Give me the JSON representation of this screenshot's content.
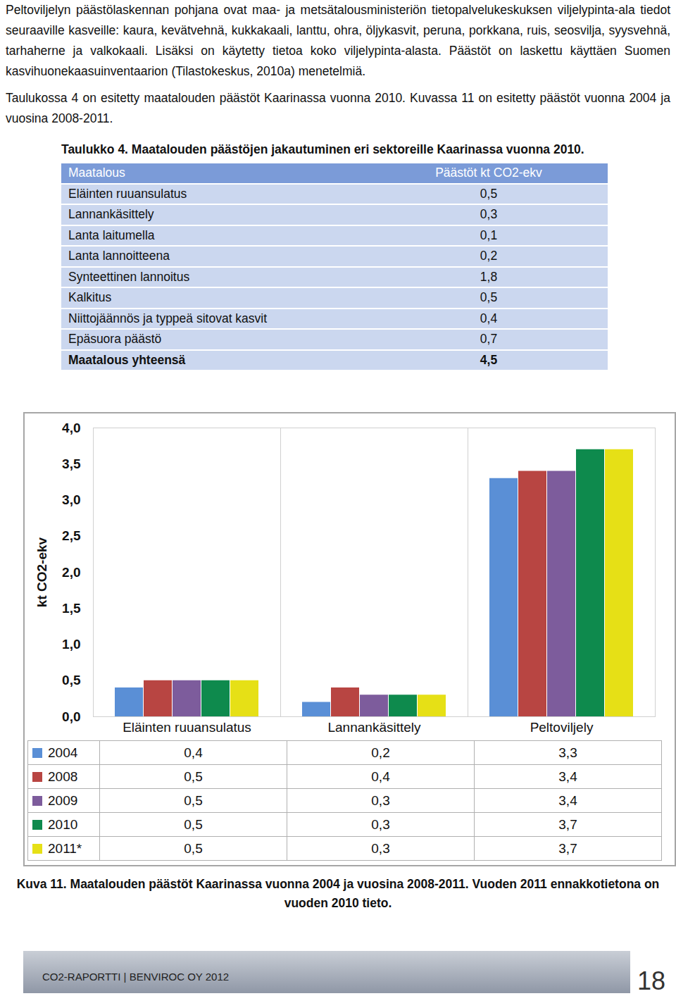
{
  "paragraphs": [
    "Peltoviljelyn päästölaskennan pohjana ovat maa- ja metsätalousministeriön tietopalvelukeskuksen viljelypinta-ala tiedot seuraaville kasveille: kaura, kevätvehnä, kukkakaali, lanttu, ohra, öljykasvit, peruna, porkkana, ruis, seosvilja, syysvehnä, tarhaherne ja valkokaali. Lisäksi on käytetty tietoa koko viljelypinta-alasta. Päästöt on laskettu käyttäen Suomen kasvihuonekaasuinventaarion (Tilastokeskus, 2010a) menetelmiä.",
    "Taulukossa 4 on esitetty maatalouden päästöt Kaarinassa vuonna 2010. Kuvassa 11 on esitetty päästöt vuonna 2004 ja vuosina 2008-2011."
  ],
  "table": {
    "title": "Taulukko 4. Maatalouden päästöjen jakautuminen eri sektoreille Kaarinassa vuonna 2010.",
    "header": [
      "Maatalous",
      "Päästöt kt CO2-ekv"
    ],
    "rows": [
      [
        "Eläinten ruuansulatus",
        "0,5"
      ],
      [
        "Lannankäsittely",
        "0,3"
      ],
      [
        "Lanta laitumella",
        "0,1"
      ],
      [
        "Lanta lannoitteena",
        "0,2"
      ],
      [
        "Synteettinen lannoitus",
        "1,8"
      ],
      [
        "Kalkitus",
        "0,5"
      ],
      [
        "Niittojäännös ja typpeä sitovat kasvit",
        "0,4"
      ],
      [
        "Epäsuora päästö",
        "0,7"
      ]
    ],
    "total": [
      "Maatalous yhteensä",
      "4,5"
    ]
  },
  "chart_data": {
    "type": "bar",
    "y_label": "kt CO2-ekv",
    "categories": [
      "Eläinten ruuansulatus",
      "Lannankäsittely",
      "Peltoviljely"
    ],
    "series": [
      {
        "name": "2004",
        "color": "#5a8fd6",
        "values": [
          0.4,
          0.2,
          3.3
        ],
        "value_labels": [
          "0,4",
          "0,2",
          "3,3"
        ]
      },
      {
        "name": "2008",
        "color": "#b84542",
        "values": [
          0.5,
          0.4,
          3.4
        ],
        "value_labels": [
          "0,5",
          "0,4",
          "3,4"
        ]
      },
      {
        "name": "2009",
        "color": "#7d5c9c",
        "values": [
          0.5,
          0.3,
          3.4
        ],
        "value_labels": [
          "0,5",
          "0,3",
          "3,4"
        ]
      },
      {
        "name": "2010",
        "color": "#0e8a4d",
        "values": [
          0.5,
          0.3,
          3.7
        ],
        "value_labels": [
          "0,5",
          "0,3",
          "3,7"
        ]
      },
      {
        "name": "2011*",
        "color": "#e6e016",
        "values": [
          0.5,
          0.3,
          3.7
        ],
        "value_labels": [
          "0,5",
          "0,3",
          "3,7"
        ]
      }
    ],
    "ylim": [
      0,
      4
    ],
    "yticks": [
      {
        "value": 0,
        "label": "0,0"
      },
      {
        "value": 0.5,
        "label": "0,5"
      },
      {
        "value": 1,
        "label": "1,0"
      },
      {
        "value": 1.5,
        "label": "1,5"
      },
      {
        "value": 2,
        "label": "2,0"
      },
      {
        "value": 2.5,
        "label": "2,5"
      },
      {
        "value": 3,
        "label": "3,0"
      },
      {
        "value": 3.5,
        "label": "3,5"
      },
      {
        "value": 4,
        "label": "4,0"
      }
    ],
    "grid": false,
    "data_labels": true
  },
  "caption": "Kuva 11. Maatalouden päästöt Kaarinassa vuonna 2004 ja vuosina 2008-2011. Vuoden 2011 ennakkotietona on vuoden 2010 tieto.",
  "footer": {
    "text": "CO2-RAPORTTI | BENVIROC OY 2012",
    "page": "18"
  }
}
